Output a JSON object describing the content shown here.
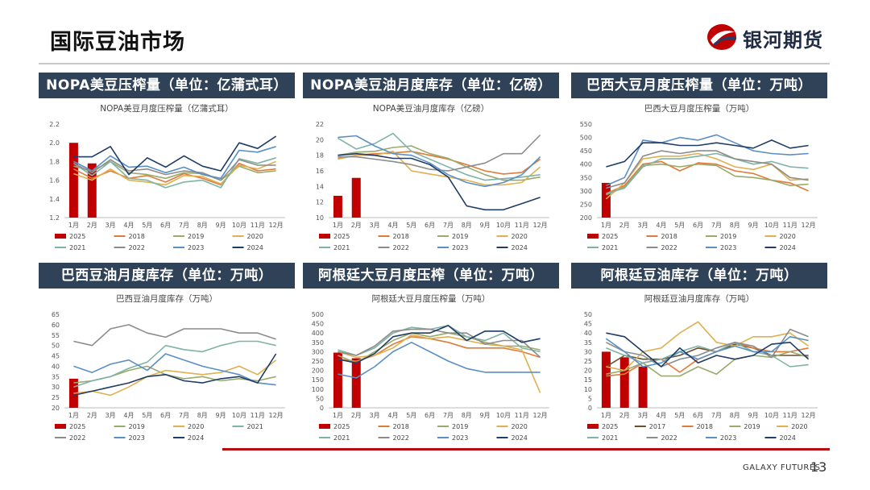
{
  "page": {
    "title": "国际豆油市场",
    "brand": "银河期货",
    "footer_brand": "GALAXY FUTURES",
    "page_number": "13"
  },
  "colors": {
    "2025": "#c00000",
    "2017": "#6b4e2a",
    "2018": "#e07b39",
    "2019": "#9aaa6c",
    "2020": "#e0b050",
    "2021": "#7fb3a6",
    "2022": "#8c8c8c",
    "2023": "#5b8fc4",
    "2024": "#1f3d66"
  },
  "chart_data": [
    {
      "panel_header": "NOPA美豆压榨量（单位：亿蒲式耳）",
      "title": "NOPA美豆月度压榨量（亿蒲式耳）",
      "type": "line",
      "ylim": [
        1.2,
        2.2
      ],
      "yticks": [
        1.2,
        1.4,
        1.6,
        1.8,
        2.0,
        2.2
      ],
      "categories": [
        "1月",
        "2月",
        "3月",
        "4月",
        "5月",
        "6月",
        "7月",
        "8月",
        "9月",
        "10月",
        "11月",
        "12月"
      ],
      "bar_series": {
        "name": "2025",
        "values": [
          2.0,
          1.78
        ]
      },
      "series": [
        {
          "name": "2018",
          "values": [
            1.72,
            1.62,
            1.7,
            1.62,
            1.65,
            1.58,
            1.67,
            1.62,
            1.55,
            1.78,
            1.7,
            1.72
          ]
        },
        {
          "name": "2019",
          "values": [
            1.75,
            1.7,
            1.8,
            1.68,
            1.66,
            1.62,
            1.68,
            1.67,
            1.6,
            1.75,
            1.68,
            1.7
          ]
        },
        {
          "name": "2020",
          "values": [
            1.67,
            1.6,
            1.72,
            1.6,
            1.58,
            1.55,
            1.65,
            1.64,
            1.56,
            1.76,
            1.72,
            1.8
          ]
        },
        {
          "name": "2021",
          "values": [
            1.78,
            1.65,
            1.8,
            1.62,
            1.6,
            1.52,
            1.58,
            1.6,
            1.52,
            1.83,
            1.78,
            1.84
          ]
        },
        {
          "name": "2022",
          "values": [
            1.78,
            1.68,
            1.82,
            1.7,
            1.72,
            1.66,
            1.7,
            1.68,
            1.6,
            1.82,
            1.76,
            1.76
          ]
        },
        {
          "name": "2023",
          "values": [
            1.8,
            1.7,
            1.86,
            1.74,
            1.75,
            1.68,
            1.74,
            1.66,
            1.62,
            1.92,
            1.9,
            1.96
          ]
        },
        {
          "name": "2024",
          "values": [
            1.85,
            1.85,
            1.96,
            1.66,
            1.84,
            1.74,
            1.86,
            1.75,
            1.7,
            2.0,
            1.94,
            2.07
          ]
        }
      ],
      "legend_rows": [
        [
          "2025",
          "2018",
          "2019",
          "2020"
        ],
        [
          "2021",
          "2022",
          "2023",
          "2024"
        ]
      ]
    },
    {
      "panel_header": "NOPA美豆油月度库存（单位：亿磅）",
      "title": "NOPA美豆油月度库存（亿磅）",
      "type": "line",
      "ylim": [
        10,
        22
      ],
      "yticks": [
        10,
        12,
        14,
        16,
        18,
        20,
        22
      ],
      "categories": [
        "1月",
        "2月",
        "3月",
        "4月",
        "5月",
        "6月",
        "7月",
        "8月",
        "9月",
        "10月",
        "11月",
        "12月"
      ],
      "bar_series": {
        "name": "2025",
        "values": [
          12.8,
          15.1
        ]
      },
      "series": [
        {
          "name": "2018",
          "values": [
            17.6,
            18.0,
            18.2,
            18.3,
            18.5,
            18.0,
            17.5,
            16.8,
            16.0,
            15.6,
            15.8,
            17.5
          ]
        },
        {
          "name": "2019",
          "values": [
            18.0,
            18.4,
            18.5,
            19.0,
            19.2,
            18.2,
            17.6,
            16.5,
            15.5,
            14.8,
            14.8,
            15.2
          ]
        },
        {
          "name": "2020",
          "values": [
            17.5,
            18.0,
            18.0,
            18.5,
            16.0,
            15.6,
            15.2,
            14.8,
            14.2,
            14.2,
            14.5,
            16.5
          ]
        },
        {
          "name": "2021",
          "values": [
            20.2,
            18.8,
            19.5,
            20.8,
            18.5,
            17.5,
            16.5,
            15.5,
            14.8,
            15.0,
            15.2,
            15.5
          ]
        },
        {
          "name": "2022",
          "values": [
            17.8,
            17.8,
            17.5,
            17.2,
            16.8,
            16.2,
            16.0,
            16.5,
            17.0,
            18.2,
            18.2,
            20.6
          ]
        },
        {
          "name": "2023",
          "values": [
            20.3,
            20.5,
            19.2,
            18.2,
            18.0,
            17.0,
            15.5,
            14.5,
            14.0,
            14.5,
            15.5,
            17.8
          ]
        },
        {
          "name": "2024",
          "values": [
            18.0,
            18.2,
            18.0,
            17.6,
            17.6,
            16.8,
            15.2,
            11.5,
            11.0,
            11.0,
            11.8,
            12.6
          ]
        }
      ],
      "legend_rows": [
        [
          "2025",
          "2018",
          "2019",
          "2020"
        ],
        [
          "2021",
          "2022",
          "2023",
          "2024"
        ]
      ]
    },
    {
      "panel_header": "巴西大豆月度压榨量（单位：万吨）",
      "title": "巴西大豆月度压榨量（万吨）",
      "type": "line",
      "ylim": [
        200,
        550
      ],
      "yticks": [
        200,
        250,
        300,
        350,
        400,
        450,
        500,
        550
      ],
      "categories": [
        "1月",
        "2月",
        "3月",
        "4月",
        "5月",
        "6月",
        "7月",
        "8月",
        "9月",
        "10月",
        "11月",
        "12月"
      ],
      "bar_series": {
        "name": "2025",
        "values": [
          330
        ]
      },
      "series": [
        {
          "name": "2018",
          "values": [
            290,
            320,
            400,
            410,
            375,
            405,
            400,
            375,
            365,
            340,
            330,
            300
          ]
        },
        {
          "name": "2019",
          "values": [
            285,
            315,
            395,
            400,
            390,
            400,
            395,
            355,
            350,
            340,
            320,
            325
          ]
        },
        {
          "name": "2020",
          "values": [
            270,
            330,
            420,
            430,
            430,
            440,
            420,
            390,
            380,
            400,
            340,
            345
          ]
        },
        {
          "name": "2021",
          "values": [
            290,
            310,
            390,
            420,
            420,
            430,
            440,
            420,
            400,
            410,
            390,
            385
          ]
        },
        {
          "name": "2022",
          "values": [
            310,
            330,
            430,
            450,
            440,
            450,
            450,
            420,
            410,
            400,
            350,
            340
          ]
        },
        {
          "name": "2023",
          "values": [
            320,
            350,
            490,
            480,
            500,
            490,
            510,
            480,
            450,
            440,
            435,
            440
          ]
        },
        {
          "name": "2024",
          "values": [
            390,
            410,
            480,
            480,
            470,
            470,
            480,
            470,
            460,
            490,
            460,
            470
          ]
        }
      ],
      "legend_rows": [
        [
          "2025",
          "2018",
          "2019",
          "2020"
        ],
        [
          "2021",
          "2022",
          "2023",
          "2024"
        ]
      ]
    },
    {
      "panel_header": "巴西豆油月度库存（单位：万吨）",
      "title": "巴西豆油月度库存（万吨）",
      "type": "line",
      "ylim": [
        20,
        65
      ],
      "yticks": [
        20,
        25,
        30,
        35,
        40,
        45,
        50,
        55,
        60,
        65
      ],
      "categories": [
        "1月",
        "2月",
        "3月",
        "4月",
        "5月",
        "6月",
        "7月",
        "8月",
        "9月",
        "10月",
        "11月",
        "12月"
      ],
      "bar_series": {
        "name": "2025",
        "values": [
          34
        ]
      },
      "series": [
        {
          "name": "2019",
          "values": [
            32,
            33,
            35,
            38,
            40,
            36,
            34,
            35,
            33,
            34,
            33,
            35
          ]
        },
        {
          "name": "2020",
          "values": [
            27,
            28,
            26,
            30,
            35,
            38,
            37,
            36,
            37,
            40,
            36,
            43
          ]
        },
        {
          "name": "2021",
          "values": [
            30,
            33,
            35,
            39,
            42,
            50,
            48,
            47,
            50,
            52,
            52,
            50
          ]
        },
        {
          "name": "2022",
          "values": [
            52,
            50,
            58,
            60,
            56,
            54,
            58,
            58,
            58,
            56,
            56,
            53
          ]
        },
        {
          "name": "2023",
          "values": [
            40,
            37,
            41,
            43,
            38,
            46,
            43,
            40,
            38,
            36,
            32,
            31
          ]
        },
        {
          "name": "2024",
          "values": [
            26,
            28,
            30,
            32,
            35,
            36,
            33,
            32,
            34,
            35,
            32,
            46
          ]
        }
      ],
      "legend_rows": [
        [
          "2025",
          "2019",
          "2020",
          "2021"
        ],
        [
          "2022",
          "2023",
          "2024"
        ]
      ]
    },
    {
      "panel_header": "阿根廷大豆月度压榨（单位：万吨）",
      "title": "阿根廷大豆月度压榨量（万吨）",
      "type": "line",
      "ylim": [
        0,
        500
      ],
      "yticks": [
        0,
        50,
        100,
        150,
        200,
        250,
        300,
        350,
        400,
        450,
        500
      ],
      "categories": [
        "1月",
        "2月",
        "3月",
        "4月",
        "5月",
        "6月",
        "7月",
        "8月",
        "9月",
        "10月",
        "11月",
        "12月"
      ],
      "bar_series": {
        "name": "2025",
        "values": [
          295,
          265
        ]
      },
      "series": [
        {
          "name": "2018",
          "values": [
            260,
            250,
            280,
            340,
            380,
            370,
            350,
            320,
            320,
            320,
            300,
            270
          ]
        },
        {
          "name": "2019",
          "values": [
            280,
            240,
            300,
            360,
            400,
            380,
            400,
            380,
            350,
            330,
            330,
            310
          ]
        },
        {
          "name": "2020",
          "values": [
            300,
            270,
            280,
            320,
            390,
            370,
            380,
            360,
            340,
            330,
            310,
            80
          ]
        },
        {
          "name": "2021",
          "values": [
            310,
            280,
            320,
            400,
            430,
            420,
            440,
            380,
            360,
            400,
            320,
            300
          ]
        },
        {
          "name": "2022",
          "values": [
            300,
            280,
            330,
            410,
            420,
            420,
            400,
            400,
            340,
            360,
            360,
            270
          ]
        },
        {
          "name": "2023",
          "values": [
            180,
            160,
            220,
            300,
            350,
            300,
            250,
            210,
            190,
            190,
            190,
            190
          ]
        },
        {
          "name": "2024",
          "values": [
            260,
            240,
            290,
            380,
            400,
            400,
            440,
            360,
            410,
            410,
            350,
            370
          ]
        }
      ],
      "legend_rows": [
        [
          "2025",
          "2018",
          "2019",
          "2020"
        ],
        [
          "2021",
          "2022",
          "2023",
          "2024"
        ]
      ]
    },
    {
      "panel_header": "阿根廷豆油库存（单位：万吨）",
      "title": "阿根廷豆油月度库存（万吨）",
      "type": "line",
      "ylim": [
        0,
        50
      ],
      "yticks": [
        0,
        5,
        10,
        15,
        20,
        25,
        30,
        35,
        40,
        45,
        50
      ],
      "categories": [
        "1月",
        "2月",
        "3月",
        "4月",
        "5月",
        "6月",
        "7月",
        "8月",
        "9月",
        "10月",
        "11月",
        "12月"
      ],
      "bar_series": {
        "name": "2025",
        "values": [
          30,
          27,
          22
        ]
      },
      "series": [
        {
          "name": "2017",
          "values": [
            22,
            28,
            26,
            26,
            28,
            32,
            30,
            34,
            32,
            28,
            28,
            28
          ]
        },
        {
          "name": "2018",
          "values": [
            17,
            18,
            24,
            26,
            19,
            26,
            30,
            35,
            32,
            30,
            30,
            32
          ]
        },
        {
          "name": "2019",
          "values": [
            18,
            20,
            24,
            17,
            17,
            22,
            18,
            26,
            28,
            27,
            30,
            27
          ]
        },
        {
          "name": "2020",
          "values": [
            22,
            20,
            30,
            32,
            40,
            46,
            35,
            33,
            38,
            38,
            40,
            33
          ]
        },
        {
          "name": "2021",
          "values": [
            32,
            28,
            24,
            26,
            30,
            33,
            30,
            35,
            30,
            28,
            22,
            23
          ]
        },
        {
          "name": "2022",
          "values": [
            35,
            30,
            28,
            22,
            26,
            28,
            32,
            35,
            33,
            27,
            42,
            38
          ]
        },
        {
          "name": "2023",
          "values": [
            37,
            30,
            22,
            24,
            30,
            26,
            30,
            33,
            30,
            30,
            38,
            36
          ]
        },
        {
          "name": "2024",
          "values": [
            40,
            38,
            30,
            22,
            32,
            24,
            28,
            26,
            28,
            34,
            35,
            26
          ]
        }
      ],
      "legend_rows": [
        [
          "2025",
          "2017",
          "2018",
          "2019",
          "2020"
        ],
        [
          "2021",
          "2022",
          "2023",
          "2024"
        ]
      ]
    }
  ]
}
